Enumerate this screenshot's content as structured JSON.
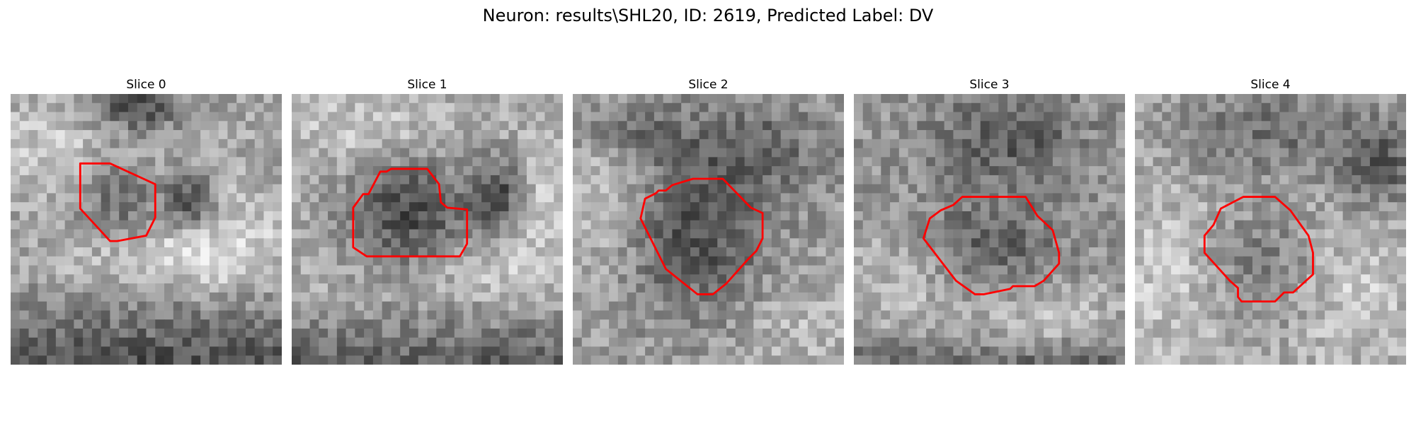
{
  "figure": {
    "title": "Neuron: results\\SHL20, ID: 2619, Predicted Label: DV"
  },
  "panels": [
    {
      "title": "Slice 0"
    },
    {
      "title": "Slice 1"
    },
    {
      "title": "Slice 2"
    },
    {
      "title": "Slice 3"
    },
    {
      "title": "Slice 4"
    }
  ],
  "colors": {
    "background": "#ffffff",
    "contour": "#ff0000",
    "image_colormap": "grayscale"
  },
  "icons": {
    "image_kind": "grayscale-microscopy-patch",
    "overlay_kind": "red-neuron-contour"
  }
}
